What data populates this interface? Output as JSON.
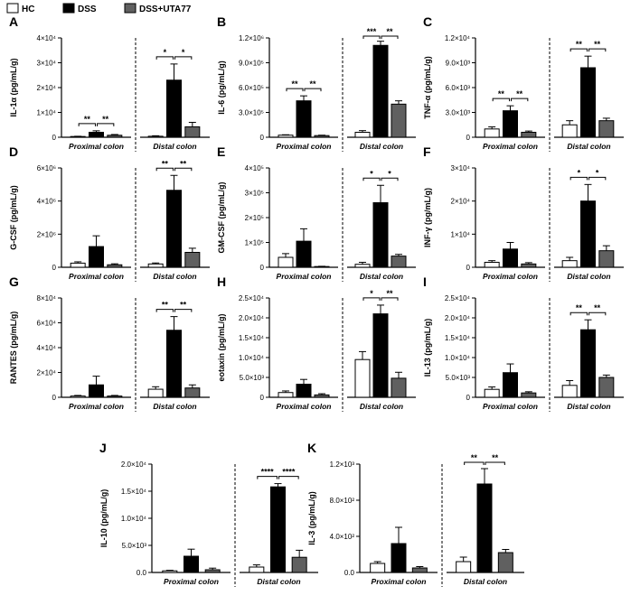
{
  "legend": [
    {
      "label": "HC",
      "fill": "#ffffff"
    },
    {
      "label": "DSS",
      "fill": "#000000"
    },
    {
      "label": "DSS+UTA77",
      "fill": "#606060"
    }
  ],
  "groups": [
    "Proximal colon",
    "Distal colon"
  ],
  "chart_data": [
    {
      "panel": "A",
      "type": "bar",
      "ylabel": "IL-1α (pg/mL/g)",
      "ylim": [
        0,
        40000
      ],
      "ticks": [
        "0",
        "1×10⁴",
        "2×10⁴",
        "3×10⁴",
        "4×10⁴"
      ],
      "series": [
        {
          "name": "HC",
          "values": [
            300,
            400
          ],
          "errors": [
            100,
            200
          ]
        },
        {
          "name": "DSS",
          "values": [
            2000,
            23000
          ],
          "errors": [
            600,
            6500
          ]
        },
        {
          "name": "DSS+UTA77",
          "values": [
            800,
            4200
          ],
          "errors": [
            300,
            1800
          ]
        }
      ],
      "significance": [
        {
          "group": 0,
          "from": 0,
          "to": 1,
          "label": "**"
        },
        {
          "group": 0,
          "from": 1,
          "to": 2,
          "label": "**"
        },
        {
          "group": 1,
          "from": 0,
          "to": 1,
          "label": "*"
        },
        {
          "group": 1,
          "from": 1,
          "to": 2,
          "label": "*"
        }
      ]
    },
    {
      "panel": "B",
      "type": "bar",
      "ylabel": "IL-6 (pg/mL/g)",
      "ylim": [
        0,
        1200000
      ],
      "ticks": [
        "0",
        "3.0×10⁵",
        "6.0×10⁵",
        "9.0×10⁵",
        "1.2×10⁶"
      ],
      "series": [
        {
          "name": "HC",
          "values": [
            25000,
            60000
          ],
          "errors": [
            5000,
            20000
          ]
        },
        {
          "name": "DSS",
          "values": [
            440000,
            1110000
          ],
          "errors": [
            60000,
            50000
          ]
        },
        {
          "name": "DSS+UTA77",
          "values": [
            20000,
            400000
          ],
          "errors": [
            5000,
            40000
          ]
        }
      ],
      "significance": [
        {
          "group": 0,
          "from": 0,
          "to": 1,
          "label": "**"
        },
        {
          "group": 0,
          "from": 1,
          "to": 2,
          "label": "**"
        },
        {
          "group": 1,
          "from": 0,
          "to": 1,
          "label": "***"
        },
        {
          "group": 1,
          "from": 1,
          "to": 2,
          "label": "**"
        }
      ]
    },
    {
      "panel": "C",
      "type": "bar",
      "ylabel": "TNF-α (pg/mL/g)",
      "ylim": [
        0,
        12000
      ],
      "ticks": [
        "0",
        "3.0×10³",
        "6.0×10³",
        "9.0×10³",
        "1.2×10⁴"
      ],
      "series": [
        {
          "name": "HC",
          "values": [
            1000,
            1500
          ],
          "errors": [
            250,
            500
          ]
        },
        {
          "name": "DSS",
          "values": [
            3200,
            8400
          ],
          "errors": [
            600,
            1400
          ]
        },
        {
          "name": "DSS+UTA77",
          "values": [
            600,
            2000
          ],
          "errors": [
            150,
            300
          ]
        }
      ],
      "significance": [
        {
          "group": 0,
          "from": 0,
          "to": 1,
          "label": "**"
        },
        {
          "group": 0,
          "from": 1,
          "to": 2,
          "label": "**"
        },
        {
          "group": 1,
          "from": 0,
          "to": 1,
          "label": "**"
        },
        {
          "group": 1,
          "from": 1,
          "to": 2,
          "label": "**"
        }
      ]
    },
    {
      "panel": "D",
      "type": "bar",
      "ylabel": "G-CSF (pg/mL/g)",
      "ylim": [
        0,
        6000000
      ],
      "ticks": [
        "0",
        "2×10⁶",
        "4×10⁶",
        "6×10⁶"
      ],
      "series": [
        {
          "name": "HC",
          "values": [
            250000,
            200000
          ],
          "errors": [
            80000,
            60000
          ]
        },
        {
          "name": "DSS",
          "values": [
            1250000,
            4650000
          ],
          "errors": [
            650000,
            900000
          ]
        },
        {
          "name": "DSS+UTA77",
          "values": [
            150000,
            900000
          ],
          "errors": [
            60000,
            250000
          ]
        }
      ],
      "significance": [
        {
          "group": 1,
          "from": 0,
          "to": 1,
          "label": "**"
        },
        {
          "group": 1,
          "from": 1,
          "to": 2,
          "label": "**"
        }
      ]
    },
    {
      "panel": "E",
      "type": "bar",
      "ylabel": "GM-CSF (pg/mL/g)",
      "ylim": [
        0,
        400000
      ],
      "ticks": [
        "0",
        "1×10⁵",
        "2×10⁵",
        "3×10⁵",
        "4×10⁵"
      ],
      "series": [
        {
          "name": "HC",
          "values": [
            40000,
            12000
          ],
          "errors": [
            15000,
            8000
          ]
        },
        {
          "name": "DSS",
          "values": [
            105000,
            260000
          ],
          "errors": [
            50000,
            70000
          ]
        },
        {
          "name": "DSS+UTA77",
          "values": [
            3000,
            45000
          ],
          "errors": [
            1000,
            7000
          ]
        }
      ],
      "significance": [
        {
          "group": 1,
          "from": 0,
          "to": 1,
          "label": "*"
        },
        {
          "group": 1,
          "from": 1,
          "to": 2,
          "label": "*"
        }
      ]
    },
    {
      "panel": "F",
      "type": "bar",
      "ylabel": "INF-γ (pg/mL/g)",
      "ylim": [
        0,
        30000
      ],
      "ticks": [
        "0",
        "1×10⁴",
        "2×10⁴",
        "3×10⁴"
      ],
      "series": [
        {
          "name": "HC",
          "values": [
            1500,
            2000
          ],
          "errors": [
            500,
            1000
          ]
        },
        {
          "name": "DSS",
          "values": [
            5500,
            20000
          ],
          "errors": [
            2000,
            5000
          ]
        },
        {
          "name": "DSS+UTA77",
          "values": [
            1000,
            5000
          ],
          "errors": [
            400,
            1500
          ]
        }
      ],
      "significance": [
        {
          "group": 1,
          "from": 0,
          "to": 1,
          "label": "*"
        },
        {
          "group": 1,
          "from": 1,
          "to": 2,
          "label": "*"
        }
      ]
    },
    {
      "panel": "G",
      "type": "bar",
      "ylabel": "RANTES (pg/mL/g)",
      "ylim": [
        0,
        80000
      ],
      "ticks": [
        "0",
        "2×10⁴",
        "4×10⁴",
        "6×10⁴",
        "8×10⁴"
      ],
      "series": [
        {
          "name": "HC",
          "values": [
            1000,
            6500
          ],
          "errors": [
            500,
            2000
          ]
        },
        {
          "name": "DSS",
          "values": [
            10000,
            54000
          ],
          "errors": [
            7000,
            11000
          ]
        },
        {
          "name": "DSS+UTA77",
          "values": [
            1000,
            7500
          ],
          "errors": [
            500,
            2500
          ]
        }
      ],
      "significance": [
        {
          "group": 1,
          "from": 0,
          "to": 1,
          "label": "**"
        },
        {
          "group": 1,
          "from": 1,
          "to": 2,
          "label": "**"
        }
      ]
    },
    {
      "panel": "H",
      "type": "bar",
      "ylabel": "eotaxin (pg/mL/g)",
      "ylim": [
        0,
        25000
      ],
      "ticks": [
        "0",
        "5.0×10³",
        "1.0×10⁴",
        "1.5×10⁴",
        "2.0×10⁴",
        "2.5×10⁴"
      ],
      "series": [
        {
          "name": "HC",
          "values": [
            1200,
            9500
          ],
          "errors": [
            400,
            2000
          ]
        },
        {
          "name": "DSS",
          "values": [
            3300,
            21000
          ],
          "errors": [
            1200,
            2200
          ]
        },
        {
          "name": "DSS+UTA77",
          "values": [
            600,
            4800
          ],
          "errors": [
            300,
            1500
          ]
        }
      ],
      "significance": [
        {
          "group": 1,
          "from": 0,
          "to": 1,
          "label": "*"
        },
        {
          "group": 1,
          "from": 1,
          "to": 2,
          "label": "**"
        }
      ]
    },
    {
      "panel": "I",
      "type": "bar",
      "ylabel": "IL-13 (pg/mL/g)",
      "ylim": [
        0,
        25000
      ],
      "ticks": [
        "0",
        "5.0×10³",
        "1.0×10⁴",
        "1.5×10⁴",
        "2.0×10⁴",
        "2.5×10⁴"
      ],
      "series": [
        {
          "name": "HC",
          "values": [
            2000,
            3000
          ],
          "errors": [
            600,
            1200
          ]
        },
        {
          "name": "DSS",
          "values": [
            6200,
            17000
          ],
          "errors": [
            2200,
            2500
          ]
        },
        {
          "name": "DSS+UTA77",
          "values": [
            1100,
            5000
          ],
          "errors": [
            300,
            600
          ]
        }
      ],
      "significance": [
        {
          "group": 1,
          "from": 0,
          "to": 1,
          "label": "**"
        },
        {
          "group": 1,
          "from": 1,
          "to": 2,
          "label": "**"
        }
      ]
    },
    {
      "panel": "J",
      "type": "bar",
      "ylabel": "IL-10 (pg/mL/g)",
      "ylim": [
        0,
        20000
      ],
      "ticks": [
        "0.0",
        "5.0×10³",
        "1.0×10⁴",
        "1.5×10⁴",
        "2.0×10⁴"
      ],
      "series": [
        {
          "name": "HC",
          "values": [
            300,
            1000
          ],
          "errors": [
            100,
            400
          ]
        },
        {
          "name": "DSS",
          "values": [
            3000,
            15800
          ],
          "errors": [
            1300,
            600
          ]
        },
        {
          "name": "DSS+UTA77",
          "values": [
            500,
            2800
          ],
          "errors": [
            300,
            1300
          ]
        }
      ],
      "significance": [
        {
          "group": 1,
          "from": 0,
          "to": 1,
          "label": "****"
        },
        {
          "group": 1,
          "from": 1,
          "to": 2,
          "label": "****"
        }
      ]
    },
    {
      "panel": "K",
      "type": "bar",
      "ylabel": "IL-3 (pg/mL/g)",
      "ylim": [
        0,
        1200
      ],
      "ticks": [
        "0.0",
        "4.0×10²",
        "8.0×10²",
        "1.2×10³"
      ],
      "series": [
        {
          "name": "HC",
          "values": [
            100,
            120
          ],
          "errors": [
            20,
            50
          ]
        },
        {
          "name": "DSS",
          "values": [
            320,
            980
          ],
          "errors": [
            180,
            170
          ]
        },
        {
          "name": "DSS+UTA77",
          "values": [
            50,
            220
          ],
          "errors": [
            15,
            35
          ]
        }
      ],
      "significance": [
        {
          "group": 1,
          "from": 0,
          "to": 1,
          "label": "**"
        },
        {
          "group": 1,
          "from": 1,
          "to": 2,
          "label": "**"
        }
      ]
    }
  ]
}
